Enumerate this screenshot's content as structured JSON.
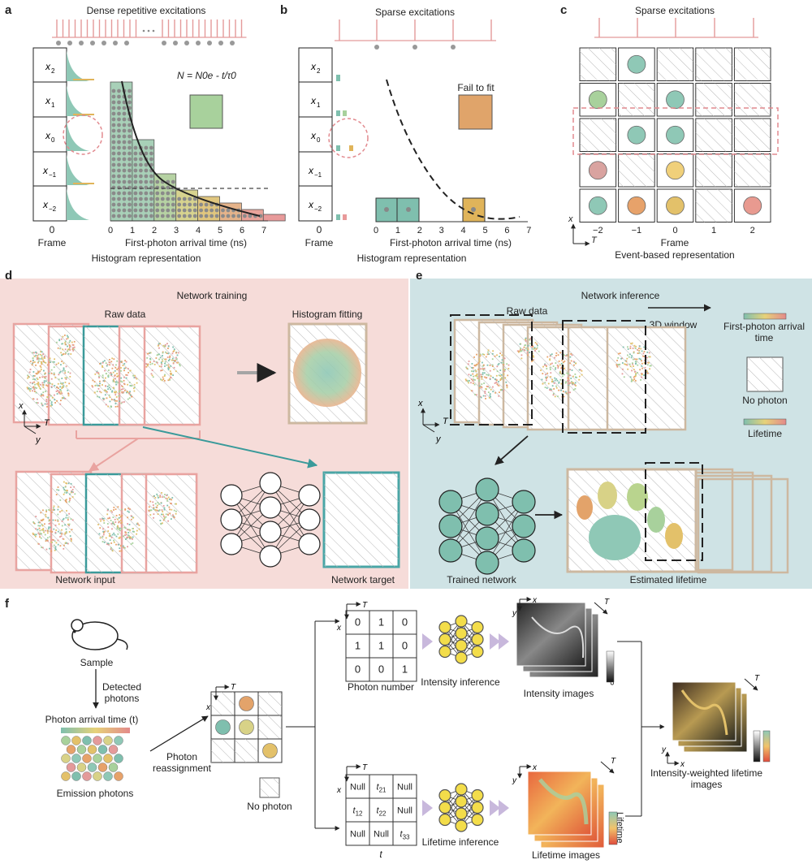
{
  "panels": {
    "a": {
      "letter": "a",
      "title": "Dense repetitive excitations",
      "rows": [
        "x2",
        "x1",
        "x0",
        "x-1",
        "x-2"
      ],
      "frame_tick": "0",
      "frame_label": "Frame",
      "equation": "N = N0e - t/τ0",
      "tau": "τ0",
      "xaxis_ticks": [
        "0",
        "1",
        "2",
        "3",
        "4",
        "5",
        "6",
        "7"
      ],
      "xaxis_label": "First-photon arrival time (ns)",
      "footer": "Histogram representation"
    },
    "b": {
      "letter": "b",
      "title": "Sparse excitations",
      "fail_label": "Fail to fit",
      "frame_tick": "0",
      "frame_label": "Frame",
      "xaxis_ticks": [
        "0",
        "1",
        "2",
        "3",
        "4",
        "5",
        "6",
        "7"
      ],
      "xaxis_label": "First-photon arrival time (ns)",
      "footer": "Histogram representation"
    },
    "c": {
      "letter": "c",
      "title": "Sparse excitations",
      "frame_ticks": [
        "−2",
        "−1",
        "0",
        "1",
        "2"
      ],
      "frame_label": "Frame",
      "footer": "Event-based representation",
      "axis_x": "x",
      "axis_t": "T"
    },
    "d": {
      "letter": "d",
      "title": "Network training",
      "raw_data": "Raw data",
      "hist_fit": "Histogram fitting",
      "net_input": "Network input",
      "net_target": "Network target"
    },
    "e": {
      "letter": "e",
      "title": "Network inference",
      "raw_data": "Raw data",
      "window": "3D window",
      "legend_fpat": "First-photon arrival time",
      "legend_nophoton": "No photon",
      "legend_lifetime": "Lifetime",
      "trained": "Trained network",
      "estimated": "Estimated lifetime"
    },
    "f": {
      "letter": "f",
      "sample": "Sample",
      "detected": "Detected photons",
      "pat": "Photon arrival time (t)",
      "emission": "Emission photons",
      "reassign": "Photon reassignment",
      "no_photon": "No photon",
      "photon_number": "Photon number",
      "intensity_inf": "Intensity inference",
      "intensity_img": "Intensity images",
      "ppp": "PPP",
      "lifetime_inf": "Lifetime inference",
      "lifetime_img": "Lifetime images",
      "lifetime_bar": "Lifetime",
      "t_label": "t",
      "combined": "Intensity-weighted lifetime images",
      "photon_matrix": [
        [
          "0",
          "1",
          "0"
        ],
        [
          "1",
          "1",
          "0"
        ],
        [
          "0",
          "0",
          "1"
        ]
      ],
      "lifetime_matrix": [
        [
          "Null",
          "t21",
          "Null"
        ],
        [
          "t12",
          "t22",
          "Null"
        ],
        [
          "Null",
          "Null",
          "t33"
        ]
      ]
    }
  },
  "colors": {
    "pink_bg": "#f6dcd9",
    "teal_bg": "#cfe3e5",
    "teal": "#7fbfae",
    "pink": "#e49a9a",
    "orange": "#e3a36a",
    "yellow": "#f0d24a",
    "green_box": "#9fca8f"
  }
}
